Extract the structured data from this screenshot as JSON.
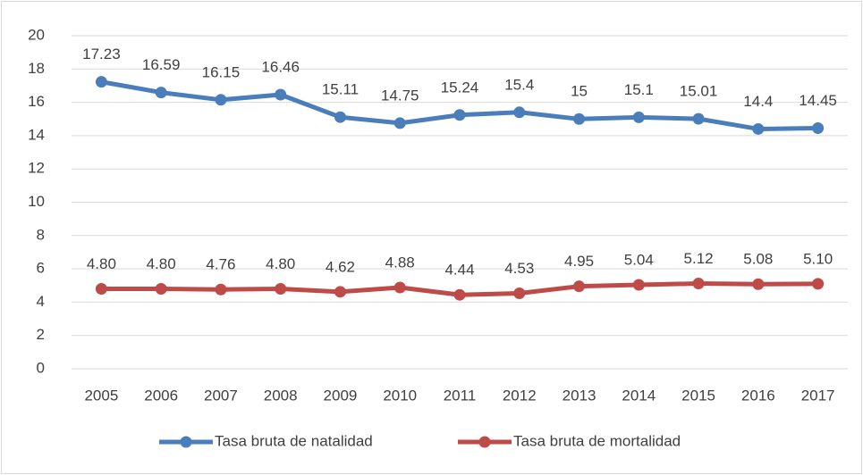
{
  "chart_data": {
    "type": "line",
    "categories": [
      "2005",
      "2006",
      "2007",
      "2008",
      "2009",
      "2010",
      "2011",
      "2012",
      "2013",
      "2014",
      "2015",
      "2016",
      "2017"
    ],
    "series": [
      {
        "name": "Tasa bruta de natalidad",
        "color": "#4a7ebb",
        "values": [
          17.23,
          16.59,
          16.15,
          16.46,
          15.11,
          14.75,
          15.24,
          15.4,
          15,
          15.1,
          15.01,
          14.4,
          14.45
        ]
      },
      {
        "name": "Tasa bruta de mortalidad",
        "color": "#be4b48",
        "values": [
          4.8,
          4.8,
          4.76,
          4.8,
          4.62,
          4.88,
          4.44,
          4.53,
          4.95,
          5.04,
          5.12,
          5.08,
          5.1
        ],
        "value_labels": [
          "4.80",
          "4.80",
          "4.76",
          "4.80",
          "4.62",
          "4.88",
          "4.44",
          "4.53",
          "4.95",
          "5.04",
          "5.12",
          "5.08",
          "5.10"
        ]
      }
    ],
    "ylim": [
      0,
      20
    ],
    "yticks": [
      0,
      2,
      4,
      6,
      8,
      10,
      12,
      14,
      16,
      18,
      20
    ],
    "grid": true,
    "legend": "bottom"
  }
}
